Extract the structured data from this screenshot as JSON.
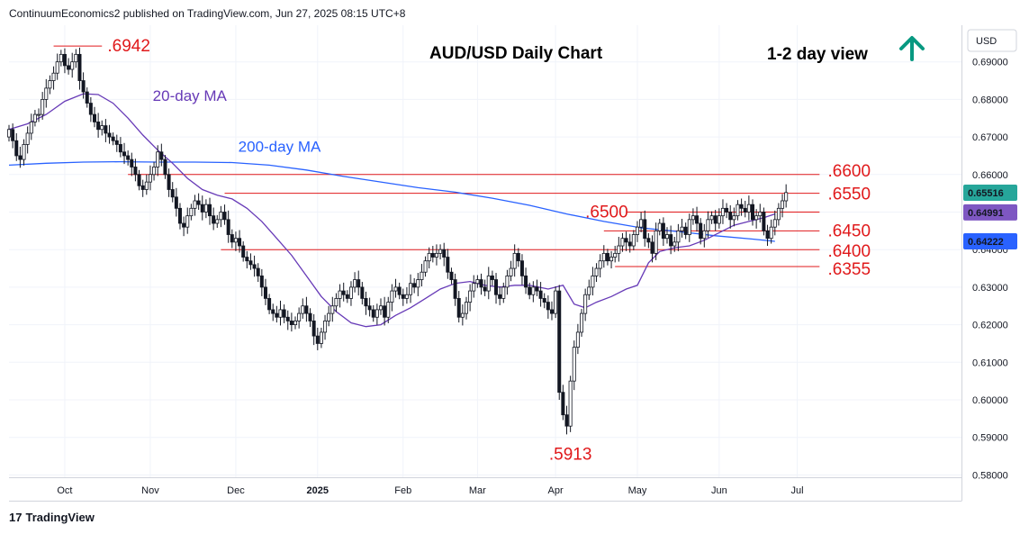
{
  "header": {
    "publisher_line": "ContinuumEconomics2 published on TradingView.com, Jun 27, 2025 08:15 UTC+8"
  },
  "footer": {
    "brand": "TradingView",
    "logo": "17"
  },
  "chart_data": {
    "type": "candlestick",
    "title": "AUD/USD Daily Chart",
    "view_label": "1-2 day view",
    "view_arrow_icon": "up-arrow-icon",
    "currency": "USD",
    "ylim": [
      0.58,
      0.695
    ],
    "y_ticks": [
      "0.69000",
      "0.68000",
      "0.67000",
      "0.66000",
      "0.65000",
      "0.64000",
      "0.63000",
      "0.62000",
      "0.61000",
      "0.60000",
      "0.59000",
      "0.58000"
    ],
    "y_tick_values": [
      0.69,
      0.68,
      0.67,
      0.66,
      0.65,
      0.64,
      0.63,
      0.62,
      0.61,
      0.6,
      0.59,
      0.58
    ],
    "months": [
      {
        "label": "Oct",
        "index": 15
      },
      {
        "label": "Nov",
        "index": 38
      },
      {
        "label": "Dec",
        "index": 61
      },
      {
        "label": "2025",
        "index": 83
      },
      {
        "label": "Feb",
        "index": 106
      },
      {
        "label": "Mar",
        "index": 126
      },
      {
        "label": "Apr",
        "index": 147
      },
      {
        "label": "May",
        "index": 169
      },
      {
        "label": "Jun",
        "index": 191
      },
      {
        "label": "Jul",
        "index": 212
      }
    ],
    "price_badges": [
      {
        "label": "0.65516",
        "value": 0.65516,
        "color": "#26a69a"
      },
      {
        "label": "0.64991",
        "value": 0.64991,
        "color": "#7e57c2"
      },
      {
        "label": "0.64222",
        "value": 0.64222,
        "color": "#2962ff"
      }
    ],
    "levels": [
      {
        "label": ".6942",
        "value": 0.6942,
        "from": 12,
        "to": 25,
        "label_pos": "right",
        "label_index": 26
      },
      {
        "label": ".6600",
        "value": 0.66,
        "from": 32,
        "to": 218,
        "label_pos": "right",
        "label_index": 219
      },
      {
        "label": ".6550",
        "value": 0.655,
        "from": 58,
        "to": 218,
        "label_pos": "right",
        "label_index": 219
      },
      {
        "label": ".6500",
        "value": 0.65,
        "from": 166,
        "to": 218,
        "label_pos": "left",
        "label_index": 155
      },
      {
        "label": ".6450",
        "value": 0.645,
        "from": 160,
        "to": 218,
        "label_pos": "right",
        "label_index": 219
      },
      {
        "label": ".6400",
        "value": 0.64,
        "from": 57,
        "to": 218,
        "label_pos": "right",
        "label_index": 219
      },
      {
        "label": ".6355",
        "value": 0.6355,
        "from": 163,
        "to": 218,
        "label_pos": "right",
        "label_index": 219
      },
      {
        "label": ".5913",
        "value": 0.5913,
        "from": null,
        "to": null,
        "label_pos": "below",
        "label_index": 151
      }
    ],
    "ma_labels": [
      {
        "label": "20-day MA",
        "color": "#673ab7",
        "index": 36,
        "value": 0.681
      },
      {
        "label": "200-day MA",
        "color": "#2962ff",
        "index": 59,
        "value": 0.6675
      }
    ],
    "ma20": [
      [
        0,
        0.672
      ],
      [
        5,
        0.6735
      ],
      [
        10,
        0.676
      ],
      [
        15,
        0.6795
      ],
      [
        20,
        0.6815
      ],
      [
        24,
        0.6813
      ],
      [
        28,
        0.679
      ],
      [
        32,
        0.675
      ],
      [
        36,
        0.6705
      ],
      [
        40,
        0.6665
      ],
      [
        44,
        0.663
      ],
      [
        48,
        0.659
      ],
      [
        52,
        0.656
      ],
      [
        56,
        0.6545
      ],
      [
        60,
        0.6535
      ],
      [
        64,
        0.651
      ],
      [
        68,
        0.6475
      ],
      [
        72,
        0.643
      ],
      [
        76,
        0.6385
      ],
      [
        80,
        0.633
      ],
      [
        84,
        0.6275
      ],
      [
        88,
        0.6235
      ],
      [
        92,
        0.6205
      ],
      [
        96,
        0.6195
      ],
      [
        100,
        0.62
      ],
      [
        104,
        0.6225
      ],
      [
        108,
        0.6245
      ],
      [
        112,
        0.627
      ],
      [
        116,
        0.6295
      ],
      [
        120,
        0.631
      ],
      [
        124,
        0.6315
      ],
      [
        128,
        0.6305
      ],
      [
        132,
        0.63
      ],
      [
        136,
        0.6305
      ],
      [
        140,
        0.6305
      ],
      [
        145,
        0.6295
      ],
      [
        149,
        0.6305
      ],
      [
        152,
        0.6255
      ],
      [
        155,
        0.6245
      ],
      [
        158,
        0.626
      ],
      [
        162,
        0.6275
      ],
      [
        166,
        0.6295
      ],
      [
        169,
        0.6305
      ],
      [
        172,
        0.6365
      ],
      [
        175,
        0.6395
      ],
      [
        179,
        0.6405
      ],
      [
        183,
        0.641
      ],
      [
        187,
        0.6425
      ],
      [
        191,
        0.6445
      ],
      [
        195,
        0.6465
      ],
      [
        199,
        0.6475
      ],
      [
        203,
        0.6485
      ],
      [
        206,
        0.6495
      ]
    ],
    "ma200": [
      [
        0,
        0.6625
      ],
      [
        10,
        0.663
      ],
      [
        20,
        0.6633
      ],
      [
        30,
        0.6634
      ],
      [
        40,
        0.6633
      ],
      [
        50,
        0.6633
      ],
      [
        60,
        0.6632
      ],
      [
        70,
        0.6625
      ],
      [
        80,
        0.6612
      ],
      [
        90,
        0.6595
      ],
      [
        100,
        0.658
      ],
      [
        110,
        0.6565
      ],
      [
        120,
        0.6553
      ],
      [
        130,
        0.6537
      ],
      [
        140,
        0.6518
      ],
      [
        150,
        0.6495
      ],
      [
        160,
        0.6475
      ],
      [
        170,
        0.6458
      ],
      [
        180,
        0.6448
      ],
      [
        190,
        0.6437
      ],
      [
        200,
        0.6428
      ],
      [
        206,
        0.6422
      ]
    ],
    "closes": [
      0.672,
      0.669,
      0.665,
      0.664,
      0.668,
      0.671,
      0.674,
      0.676,
      0.676,
      0.68,
      0.683,
      0.685,
      0.687,
      0.69,
      0.692,
      0.689,
      0.688,
      0.69,
      0.692,
      0.685,
      0.682,
      0.679,
      0.676,
      0.674,
      0.672,
      0.673,
      0.671,
      0.67,
      0.669,
      0.668,
      0.666,
      0.665,
      0.664,
      0.662,
      0.66,
      0.657,
      0.656,
      0.658,
      0.66,
      0.662,
      0.666,
      0.664,
      0.66,
      0.656,
      0.654,
      0.651,
      0.647,
      0.646,
      0.649,
      0.651,
      0.653,
      0.652,
      0.65,
      0.652,
      0.649,
      0.647,
      0.648,
      0.65,
      0.648,
      0.644,
      0.642,
      0.643,
      0.641,
      0.638,
      0.637,
      0.636,
      0.635,
      0.633,
      0.63,
      0.627,
      0.624,
      0.623,
      0.622,
      0.624,
      0.622,
      0.621,
      0.62,
      0.621,
      0.623,
      0.625,
      0.623,
      0.621,
      0.617,
      0.615,
      0.618,
      0.621,
      0.623,
      0.625,
      0.627,
      0.629,
      0.628,
      0.627,
      0.63,
      0.632,
      0.63,
      0.627,
      0.625,
      0.624,
      0.622,
      0.624,
      0.625,
      0.622,
      0.626,
      0.629,
      0.63,
      0.628,
      0.627,
      0.628,
      0.631,
      0.63,
      0.632,
      0.634,
      0.637,
      0.639,
      0.638,
      0.639,
      0.64,
      0.638,
      0.634,
      0.632,
      0.627,
      0.622,
      0.623,
      0.626,
      0.629,
      0.631,
      0.632,
      0.63,
      0.629,
      0.633,
      0.632,
      0.628,
      0.627,
      0.63,
      0.633,
      0.635,
      0.639,
      0.637,
      0.633,
      0.63,
      0.628,
      0.63,
      0.629,
      0.627,
      0.626,
      0.624,
      0.623,
      0.629,
      0.602,
      0.596,
      0.593,
      0.605,
      0.614,
      0.618,
      0.623,
      0.628,
      0.63,
      0.633,
      0.635,
      0.637,
      0.639,
      0.637,
      0.638,
      0.639,
      0.641,
      0.643,
      0.642,
      0.641,
      0.644,
      0.646,
      0.648,
      0.643,
      0.642,
      0.639,
      0.645,
      0.647,
      0.643,
      0.644,
      0.641,
      0.642,
      0.645,
      0.646,
      0.644,
      0.648,
      0.649,
      0.647,
      0.643,
      0.645,
      0.648,
      0.649,
      0.647,
      0.649,
      0.651,
      0.65,
      0.648,
      0.649,
      0.652,
      0.651,
      0.65,
      0.652,
      0.648,
      0.649,
      0.65,
      0.645,
      0.643,
      0.646,
      0.648,
      0.651,
      0.653,
      0.6552
    ]
  }
}
